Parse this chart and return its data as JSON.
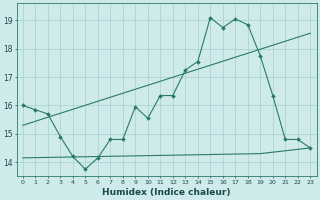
{
  "xlabel": "Humidex (Indice chaleur)",
  "bg_color": "#ceeaea",
  "grid_color": "#a8d0d0",
  "line_color": "#2a7a6a",
  "xlim": [
    -0.5,
    23.5
  ],
  "ylim": [
    13.5,
    19.6
  ],
  "xticks": [
    0,
    1,
    2,
    3,
    4,
    5,
    6,
    7,
    8,
    9,
    10,
    11,
    12,
    13,
    14,
    15,
    16,
    17,
    18,
    19,
    20,
    21,
    22,
    23
  ],
  "yticks": [
    14,
    15,
    16,
    17,
    18,
    19
  ],
  "line1_x": [
    0,
    1,
    2,
    3,
    4,
    5,
    6,
    7,
    8,
    9,
    10,
    11,
    12,
    13,
    14,
    15,
    16,
    17,
    18,
    19,
    20,
    21,
    22,
    23
  ],
  "line1_y": [
    16.0,
    15.85,
    15.7,
    14.9,
    14.2,
    13.75,
    14.15,
    14.8,
    14.8,
    15.95,
    15.55,
    16.35,
    16.35,
    17.25,
    17.55,
    19.1,
    18.75,
    19.05,
    18.85,
    17.75,
    16.35,
    14.8,
    14.8,
    14.5
  ],
  "line2_x": [
    0,
    23
  ],
  "line2_y": [
    15.3,
    18.55
  ],
  "line3_x": [
    0,
    19,
    20,
    21,
    22,
    23
  ],
  "line3_y": [
    14.15,
    14.3,
    14.35,
    14.4,
    14.45,
    14.5
  ],
  "xtick_fontsize": 4.5,
  "ytick_fontsize": 5.5,
  "xlabel_fontsize": 6.5
}
